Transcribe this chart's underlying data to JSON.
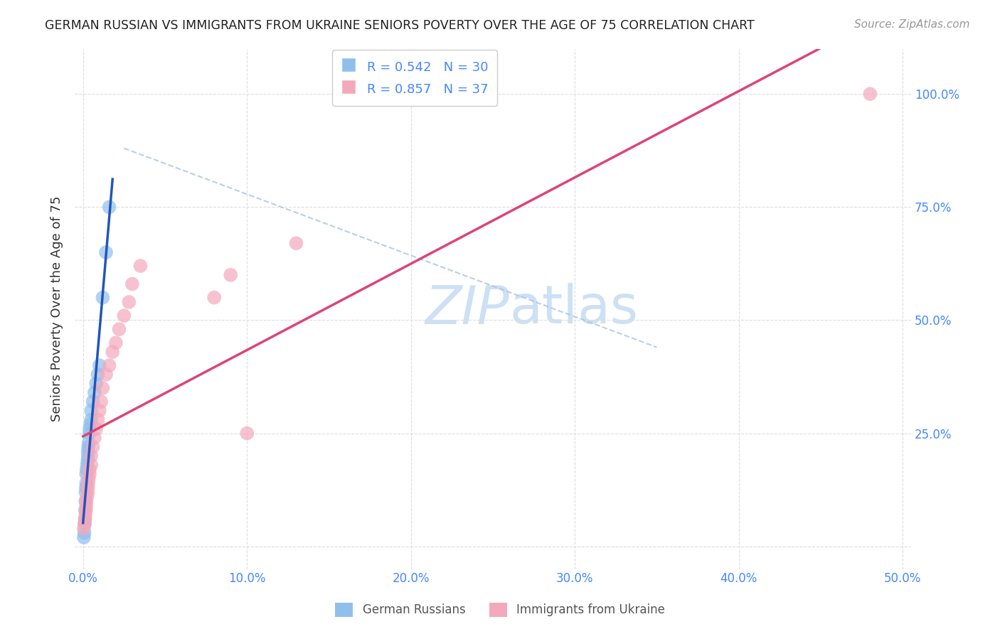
{
  "title": "GERMAN RUSSIAN VS IMMIGRANTS FROM UKRAINE SENIORS POVERTY OVER THE AGE OF 75 CORRELATION CHART",
  "source": "Source: ZipAtlas.com",
  "ylabel": "Seniors Poverty Over the Age of 75",
  "color_blue": "#91bfec",
  "color_pink": "#f4a8bc",
  "line_blue": "#2255bb",
  "line_pink": "#dd4477",
  "dash_color": "#aac4e0",
  "watermark_color": "#cde0f5",
  "title_color": "#222222",
  "axis_color": "#4488ff",
  "grid_color": "#dddddd",
  "source_color": "#999999",
  "german_russian_x": [
    0.0005,
    0.0008,
    0.001,
    0.0012,
    0.0013,
    0.0015,
    0.0016,
    0.0018,
    0.002,
    0.002,
    0.0022,
    0.0025,
    0.0028,
    0.003,
    0.003,
    0.0032,
    0.0035,
    0.004,
    0.004,
    0.0045,
    0.005,
    0.005,
    0.006,
    0.007,
    0.008,
    0.009,
    0.01,
    0.012,
    0.014,
    0.016
  ],
  "german_russian_y": [
    0.02,
    0.03,
    0.05,
    0.06,
    0.08,
    0.1,
    0.12,
    0.13,
    0.14,
    0.16,
    0.17,
    0.18,
    0.19,
    0.2,
    0.21,
    0.22,
    0.23,
    0.25,
    0.26,
    0.27,
    0.28,
    0.3,
    0.32,
    0.34,
    0.36,
    0.38,
    0.4,
    0.55,
    0.65,
    0.75
  ],
  "ukraine_x": [
    0.0005,
    0.001,
    0.0012,
    0.0015,
    0.0018,
    0.002,
    0.002,
    0.0025,
    0.003,
    0.003,
    0.0032,
    0.0035,
    0.004,
    0.004,
    0.005,
    0.005,
    0.006,
    0.007,
    0.008,
    0.009,
    0.01,
    0.011,
    0.012,
    0.014,
    0.016,
    0.018,
    0.02,
    0.022,
    0.025,
    0.028,
    0.03,
    0.035,
    0.08,
    0.09,
    0.1,
    0.13,
    0.48
  ],
  "ukraine_y": [
    0.04,
    0.05,
    0.06,
    0.07,
    0.08,
    0.09,
    0.1,
    0.11,
    0.12,
    0.13,
    0.14,
    0.15,
    0.16,
    0.17,
    0.18,
    0.2,
    0.22,
    0.24,
    0.26,
    0.28,
    0.3,
    0.32,
    0.35,
    0.38,
    0.4,
    0.43,
    0.45,
    0.48,
    0.51,
    0.54,
    0.58,
    0.62,
    0.55,
    0.6,
    0.25,
    0.67,
    1.0
  ],
  "xlim": [
    -0.005,
    0.505
  ],
  "ylim": [
    -0.05,
    1.1
  ],
  "x_ticks": [
    0.0,
    0.1,
    0.2,
    0.3,
    0.4,
    0.5
  ],
  "y_ticks_right": [
    0.25,
    0.5,
    0.75,
    1.0
  ],
  "y_ticks_right_labels": [
    "25.0%",
    "50.0%",
    "75.0%",
    "100.0%"
  ]
}
